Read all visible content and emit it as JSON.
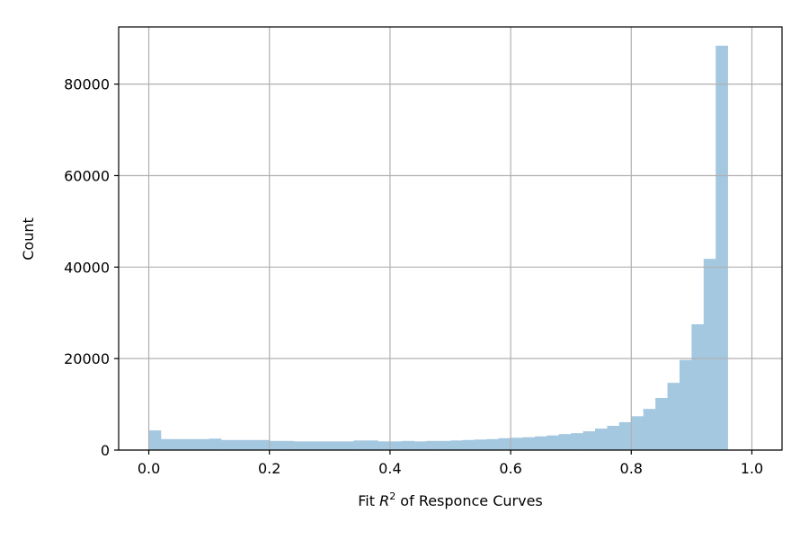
{
  "chart_data": {
    "type": "bar",
    "subtype": "histogram",
    "xlabel_prefix": "Fit ",
    "xlabel_sup": "2",
    "xlabel_suffix": " of Responce Curves",
    "xlabel_var": "R",
    "ylabel": "Count",
    "xlim": [
      -0.05,
      1.05
    ],
    "ylim": [
      0,
      92500
    ],
    "grid": true,
    "color": "#a4c8e0",
    "bin_width": 0.02,
    "bin_start": 0.0,
    "values": [
      4300,
      2400,
      2400,
      2400,
      2400,
      2500,
      2200,
      2200,
      2200,
      2200,
      2000,
      2000,
      1900,
      1900,
      1900,
      1900,
      1900,
      2100,
      2100,
      1900,
      1900,
      2000,
      1900,
      2000,
      2000,
      2100,
      2200,
      2300,
      2400,
      2600,
      2700,
      2800,
      3000,
      3200,
      3500,
      3700,
      4100,
      4700,
      5300,
      6100,
      7400,
      9000,
      11400,
      14700,
      19700,
      27500,
      41800,
      88400
    ],
    "xticks": [
      0.0,
      0.2,
      0.4,
      0.6,
      0.8,
      1.0
    ],
    "xtick_labels": [
      "0.0",
      "0.2",
      "0.4",
      "0.6",
      "0.8",
      "1.0"
    ],
    "yticks": [
      0,
      20000,
      40000,
      60000,
      80000
    ],
    "ytick_labels": [
      "0",
      "20000",
      "40000",
      "60000",
      "80000"
    ]
  }
}
